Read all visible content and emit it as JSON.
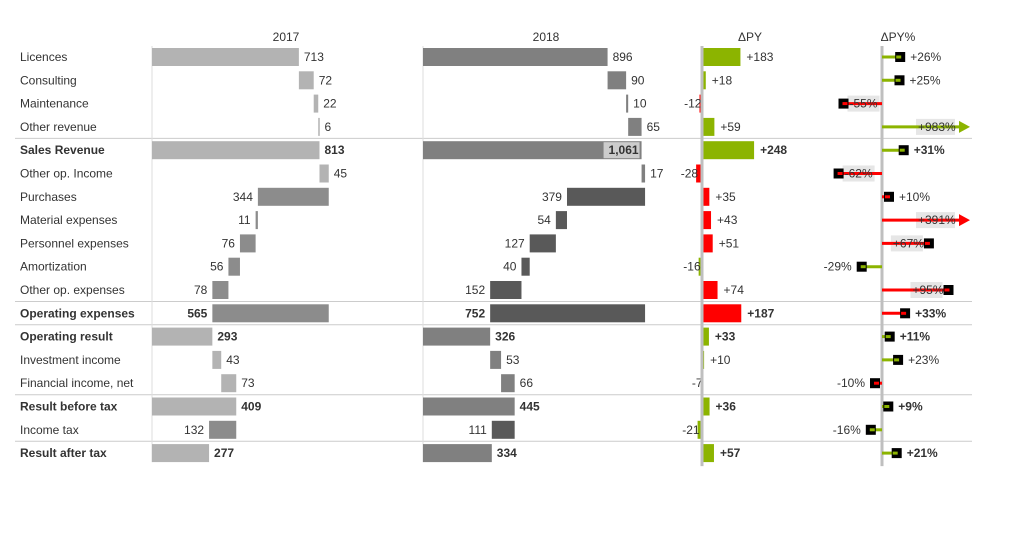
{
  "chart_data": {
    "type": "bar",
    "subtype": "waterfall-variance",
    "columns": [
      "2017",
      "2018",
      "ΔPY",
      "ΔPY%"
    ],
    "colors": {
      "py_light": "#b3b3b3",
      "py_dark": "#8c8c8c",
      "ac_light": "#808080",
      "ac_dark": "#595959",
      "positive": "#8cb400",
      "negative": "#ff0000",
      "axis": "#bfbfbf",
      "label_bg": "#e6e6e6"
    },
    "rows": [
      {
        "label": "Licences",
        "kind": "start",
        "v2017": 713,
        "v2018": 896,
        "dpy": "+183",
        "dpy_val": 183,
        "dpct": "+26%",
        "dpct_val": 26,
        "good": true
      },
      {
        "label": "Consulting",
        "kind": "add",
        "v2017": 72,
        "v2018": 90,
        "dpy": "+18",
        "dpy_val": 18,
        "dpct": "+25%",
        "dpct_val": 25,
        "good": true
      },
      {
        "label": "Maintenance",
        "kind": "add",
        "v2017": 22,
        "v2018": 10,
        "dpy": "-12",
        "dpy_val": -12,
        "dpct": "-55%",
        "dpct_val": -55,
        "good": false
      },
      {
        "label": "Other revenue",
        "kind": "add",
        "v2017": 6,
        "v2018": 65,
        "dpy": "+59",
        "dpy_val": 59,
        "dpct": "+983%",
        "dpct_val": 983,
        "good": true
      },
      {
        "label": "Sales Revenue",
        "kind": "total",
        "bold": true,
        "v2017": 813,
        "v2018": 1061,
        "v2017_label": "813",
        "v2018_label": "1,061",
        "dpy": "+248",
        "dpy_val": 248,
        "dpct": "+31%",
        "dpct_val": 31,
        "good": true
      },
      {
        "label": "Other op. Income",
        "kind": "add",
        "v2017": 45,
        "v2018": 17,
        "dpy": "-28",
        "dpy_val": -28,
        "dpct": "-62%",
        "dpct_val": -62,
        "good": false
      },
      {
        "label": "Purchases",
        "kind": "sub",
        "v2017": 344,
        "v2018": 379,
        "dpy": "+35",
        "dpy_val": 35,
        "dpct": "+10%",
        "dpct_val": 10,
        "good": false
      },
      {
        "label": "Material expenses",
        "kind": "sub",
        "v2017": 11,
        "v2018": 54,
        "dpy": "+43",
        "dpy_val": 43,
        "dpct": "+391%",
        "dpct_val": 391,
        "good": false
      },
      {
        "label": "Personnel expenses",
        "kind": "sub",
        "v2017": 76,
        "v2018": 127,
        "dpy": "+51",
        "dpy_val": 51,
        "dpct": "+67%",
        "dpct_val": 67,
        "good": false
      },
      {
        "label": "Amortization",
        "kind": "sub",
        "v2017": 56,
        "v2018": 40,
        "dpy": "-16",
        "dpy_val": -16,
        "dpct": "-29%",
        "dpct_val": -29,
        "good": true
      },
      {
        "label": "Other op. expenses",
        "kind": "sub",
        "v2017": 78,
        "v2018": 152,
        "dpy": "+74",
        "dpy_val": 74,
        "dpct": "+95%",
        "dpct_val": 95,
        "good": false
      },
      {
        "label": "Operating expenses",
        "kind": "subtotal_exp",
        "bold": true,
        "v2017": 565,
        "v2018": 752,
        "dpy": "+187",
        "dpy_val": 187,
        "dpct": "+33%",
        "dpct_val": 33,
        "good": false
      },
      {
        "label": "Operating result",
        "kind": "total",
        "bold": true,
        "v2017": 293,
        "v2018": 326,
        "dpy": "+33",
        "dpy_val": 33,
        "dpct": "+11%",
        "dpct_val": 11,
        "good": true
      },
      {
        "label": "Investment income",
        "kind": "add",
        "v2017": 43,
        "v2018": 53,
        "dpy": "+10",
        "dpy_val": 10,
        "dpct": "+23%",
        "dpct_val": 23,
        "good": true
      },
      {
        "label": "Financial income, net",
        "kind": "add",
        "v2017": 73,
        "v2018": 66,
        "dpy": "-7",
        "dpy_val": -7,
        "dpct": "-10%",
        "dpct_val": -10,
        "good": false
      },
      {
        "label": "Result before tax",
        "kind": "total",
        "bold": true,
        "v2017": 409,
        "v2018": 445,
        "dpy": "+36",
        "dpy_val": 36,
        "dpct": "+9%",
        "dpct_val": 9,
        "good": true
      },
      {
        "label": "Income tax",
        "kind": "sub",
        "v2017": 132,
        "v2018": 111,
        "dpy": "-21",
        "dpy_val": -21,
        "dpct": "-16%",
        "dpct_val": -16,
        "good": true
      },
      {
        "label": "Result after tax",
        "kind": "total",
        "bold": true,
        "v2017": 277,
        "v2018": 334,
        "dpy": "+57",
        "dpy_val": 57,
        "dpct": "+21%",
        "dpct_val": 21,
        "good": true
      }
    ],
    "separators_after": [
      "Other revenue",
      "Other op. expenses",
      "Operating expenses",
      "Financial income, net",
      "Income tax"
    ],
    "grid": false,
    "legend": "none"
  }
}
